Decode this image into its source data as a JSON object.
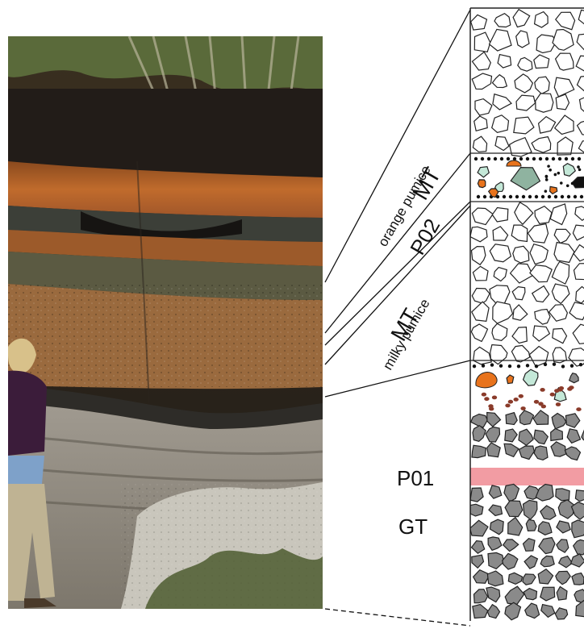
{
  "labels": {
    "mt_orange_unit": "MT",
    "mt_orange_sub": "orange pumice",
    "p02": "P02",
    "mt_milky_unit": "MT",
    "mt_milky_sub": "milky pumice",
    "p01": "P01",
    "gt": "GT"
  },
  "colors": {
    "clast_outline": "#222222",
    "gray_clast": "#8a8a8a",
    "orange_pumice": "#e8731c",
    "green_clast": "#8fb3a0",
    "light_green": "#c4e8d8",
    "brown_clast": "#8a3b2a",
    "pink_band": "#f29ca3",
    "photo_soil": "#2a2420",
    "photo_orange": "#b5662a",
    "photo_gray": "#8c8c86"
  }
}
